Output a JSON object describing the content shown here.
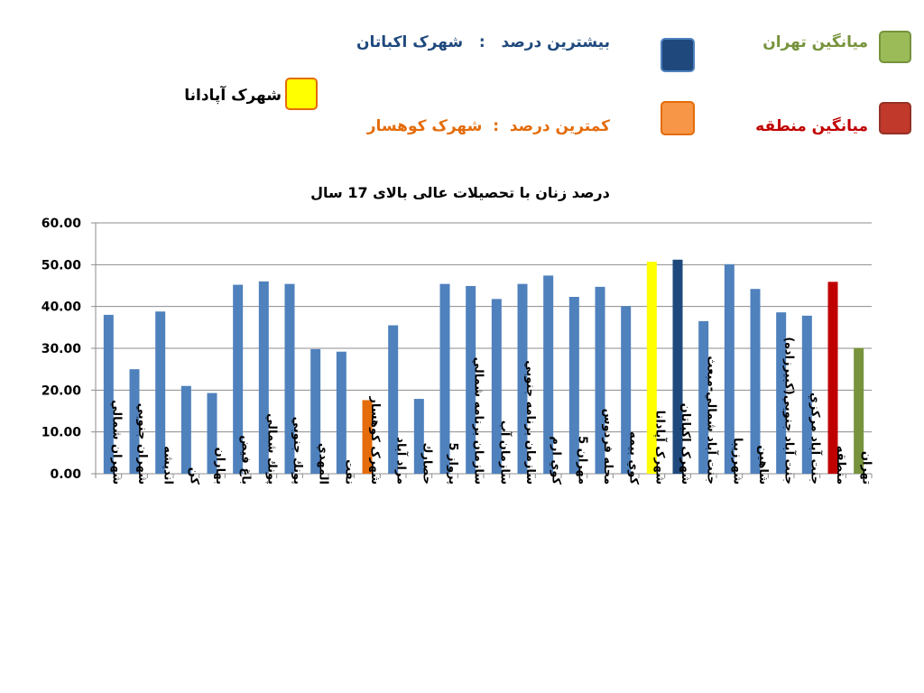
{
  "colors": {
    "default_bar": "#4F81BD",
    "min_bar": "#E46C0A",
    "max_bar": "#1F497D",
    "subject_bar": "#FFFF00",
    "region_bar": "#C00000",
    "tehran_bar": "#77933C"
  },
  "legend": {
    "max": {
      "label": "بيشترين درصد",
      "separator": ":",
      "value": "شهرک اكباتان",
      "color": "#1F497D",
      "swatch": "#1F497D"
    },
    "min": {
      "label": "کمترين درصد",
      "separator": ":",
      "value": "شهرک کوهسار",
      "color": "#E46C0A",
      "swatch": "#F79646"
    },
    "tehran": {
      "text": "ميانگين تهران",
      "color": "#77933C",
      "swatch": "#9BBB59"
    },
    "region": {
      "text": "ميانگين منطقه",
      "color": "#C00000",
      "swatch": "#C0392B"
    },
    "subject": {
      "text": "شهرک آپادانا",
      "color": "#000000",
      "swatch": "#FFFF00"
    }
  },
  "chart_data": {
    "type": "bar",
    "title": "درصد زنان با تحصيلات عالی بالای 17 سال",
    "ylim": [
      0,
      60
    ],
    "yticks": [
      "0.00",
      "10.00",
      "20.00",
      "30.00",
      "40.00",
      "50.00",
      "60.00"
    ],
    "grid": true,
    "categories": [
      "شهران شمالي",
      "شهران جنوبي",
      "انديشه",
      "كن",
      "بهاران",
      "باغ فيض",
      "پونك شمالي",
      "پونك جنوبي",
      "المهدي",
      "نفت",
      "شهرک کوهسار",
      "مراد آباد",
      "حصارك",
      "پرواز 5",
      "سازمان برنامه شمالي",
      "سازمان آب",
      "سازمان برنامه جنوبي",
      "كوي ارم",
      "مهران 5",
      "محله فردوس",
      "كوي بيمه",
      "شهرک آپادانا",
      "شهرک اكباتان",
      "جنت آباد شمالي-مبعث",
      "شهرزيبا",
      "شاهين",
      "جنت آباد جنوبي(كبيرزاده)",
      "جنت آباد مركزي",
      "منطقه",
      "تهران"
    ],
    "values": [
      38.0,
      25.0,
      38.8,
      21.0,
      19.3,
      45.2,
      46.0,
      45.4,
      29.8,
      29.2,
      17.6,
      35.5,
      17.9,
      45.4,
      44.9,
      41.8,
      45.4,
      47.4,
      42.3,
      44.7,
      40.1,
      50.7,
      51.2,
      36.5,
      50.1,
      44.2,
      38.6,
      37.8,
      45.9,
      30.1
    ],
    "bar_colors": [
      "default_bar",
      "default_bar",
      "default_bar",
      "default_bar",
      "default_bar",
      "default_bar",
      "default_bar",
      "default_bar",
      "default_bar",
      "default_bar",
      "min_bar",
      "default_bar",
      "default_bar",
      "default_bar",
      "default_bar",
      "default_bar",
      "default_bar",
      "default_bar",
      "default_bar",
      "default_bar",
      "default_bar",
      "subject_bar",
      "max_bar",
      "default_bar",
      "default_bar",
      "default_bar",
      "default_bar",
      "default_bar",
      "region_bar",
      "tehran_bar"
    ]
  }
}
